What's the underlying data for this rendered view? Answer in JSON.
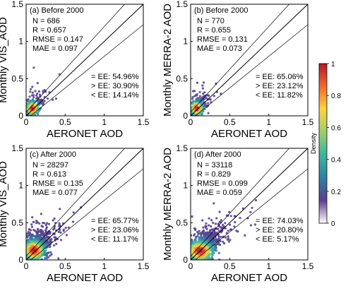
{
  "chart_data": [
    {
      "type": "scatter",
      "panel_label": "(a) Before 2000",
      "xlabel": "AERONET AOD",
      "ylabel": "Monthly VIS_AOD",
      "xlim": [
        0,
        1.5
      ],
      "ylim": [
        0,
        1.5
      ],
      "xticks": [
        "0",
        "0.5",
        "1",
        "1.5"
      ],
      "yticks": [
        "0",
        "0.5",
        "1",
        "1.5"
      ],
      "stats": [
        "N = 686",
        "R = 0.657",
        "RMSE = 0.147",
        "MAE = 0.097"
      ],
      "ee": [
        "= EE: 54.96%",
        "> EE: 30.90%",
        "< EE: 14.14%"
      ],
      "one_to_one": true,
      "ee_envelope": [
        [
          0.05,
          0.15
        ],
        [
          -0.05,
          0.85
        ]
      ],
      "cluster": {
        "x_center": 0.08,
        "y_center": 0.1,
        "x_spread": 0.06,
        "y_spread": 0.07,
        "n_points": 260
      }
    },
    {
      "type": "scatter",
      "panel_label": "(b) Before 2000",
      "xlabel": "AERONET AOD",
      "ylabel": "Monthly MERRA-2 AOD",
      "xlim": [
        0,
        1.5
      ],
      "ylim": [
        0,
        1.5
      ],
      "xticks": [
        "0",
        "0.5",
        "1",
        "1.5"
      ],
      "yticks": [
        "0",
        "0.5",
        "1",
        "1.5"
      ],
      "stats": [
        "N = 770",
        "R = 0.655",
        "RMSE = 0.131",
        "MAE = 0.073"
      ],
      "ee": [
        "= EE: 65.06%",
        "> EE: 23.12%",
        "< EE: 11.82%"
      ],
      "one_to_one": true,
      "ee_envelope": [
        [
          0.05,
          0.15
        ],
        [
          -0.05,
          0.85
        ]
      ],
      "cluster": {
        "x_center": 0.08,
        "y_center": 0.1,
        "x_spread": 0.06,
        "y_spread": 0.07,
        "n_points": 280
      }
    },
    {
      "type": "scatter",
      "panel_label": "(c) After 2000",
      "xlabel": "AERONET AOD",
      "ylabel": "Monthly VIS_AOD",
      "xlim": [
        0,
        1.5
      ],
      "ylim": [
        0,
        1.5
      ],
      "xticks": [
        "0",
        "0.5",
        "1",
        "1.5"
      ],
      "yticks": [
        "0",
        "0.5",
        "1",
        "1.5"
      ],
      "stats": [
        "N = 28297",
        "R = 0.613",
        "RMSE = 0.135",
        "MAE = 0.077"
      ],
      "ee": [
        "= EE: 65.77%",
        "> EE: 23.06%",
        "< EE: 11.17%"
      ],
      "one_to_one": true,
      "ee_envelope": [
        [
          0.05,
          0.15
        ],
        [
          -0.05,
          0.85
        ]
      ],
      "cluster": {
        "x_center": 0.1,
        "y_center": 0.13,
        "x_spread": 0.1,
        "y_spread": 0.1,
        "n_points": 900
      }
    },
    {
      "type": "scatter",
      "panel_label": "(d) After 2000",
      "xlabel": "AERONET AOD",
      "ylabel": "Monthly MERRA-2 AOD",
      "xlim": [
        0,
        1.5
      ],
      "ylim": [
        0,
        1.5
      ],
      "xticks": [
        "0",
        "0.5",
        "1",
        "1.5"
      ],
      "yticks": [
        "0",
        "0.5",
        "1",
        "1.5"
      ],
      "stats": [
        "N = 33118",
        "R = 0.829",
        "RMSE = 0.099",
        "MAE = 0.059"
      ],
      "ee": [
        "= EE: 74.03%",
        "> EE: 20.80%",
        "< EE: 5.17%"
      ],
      "one_to_one": true,
      "ee_envelope": [
        [
          0.05,
          0.15
        ],
        [
          -0.05,
          0.85
        ]
      ],
      "cluster": {
        "x_center": 0.12,
        "y_center": 0.12,
        "x_spread": 0.12,
        "y_spread": 0.1,
        "n_points": 1000
      }
    }
  ],
  "colorbar": {
    "label": "Density",
    "ticks": [
      "0",
      "0.2",
      "0.4",
      "0.6",
      "0.8",
      "1"
    ],
    "range": [
      0,
      1
    ],
    "colors": [
      "#ffffff",
      "#5c3d8f",
      "#2f80a8",
      "#3fb49b",
      "#9bd06b",
      "#ffd23f",
      "#f26b2c",
      "#b2182b"
    ]
  }
}
